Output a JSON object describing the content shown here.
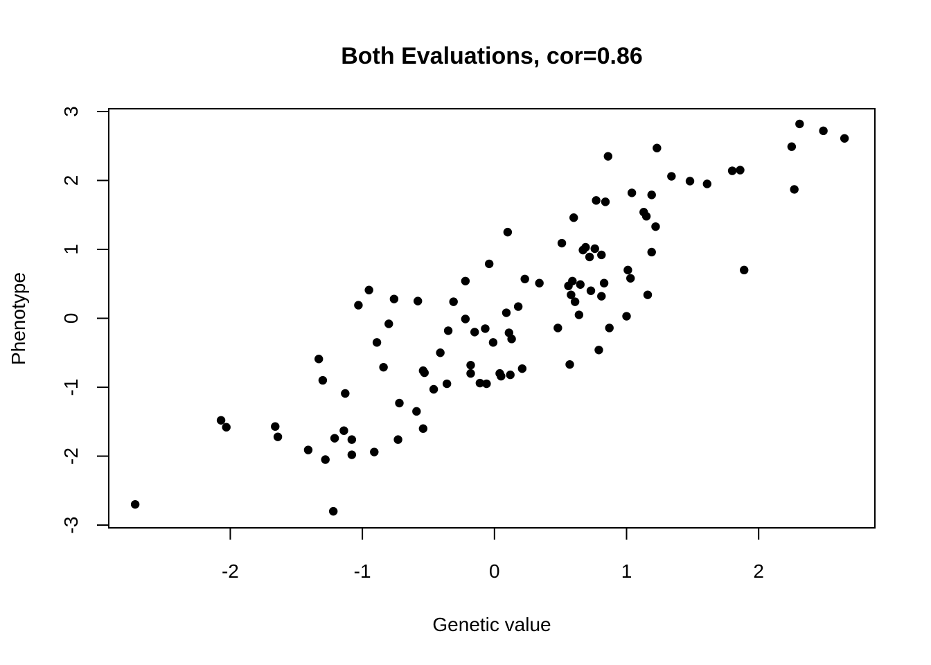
{
  "chart_data": {
    "type": "scatter",
    "title": "Both Evaluations, cor=0.86",
    "xlabel": "Genetic value",
    "ylabel": "Phenotype",
    "xlim": [
      -2.92,
      2.88
    ],
    "ylim": [
      -3.04,
      3.04
    ],
    "x_ticks": [
      -2,
      -1,
      0,
      1,
      2
    ],
    "y_ticks": [
      -3,
      -2,
      -1,
      0,
      1,
      2,
      3
    ],
    "x_tick_labels": [
      "-2",
      "-1",
      "0",
      "1",
      "2"
    ],
    "y_tick_labels": [
      "-3",
      "-2",
      "-1",
      "0",
      "1",
      "2",
      "3"
    ],
    "grid": false,
    "legend": "none",
    "point_color": "#000000",
    "points": [
      {
        "x": -2.72,
        "y": -2.7
      },
      {
        "x": -2.07,
        "y": -1.48
      },
      {
        "x": -2.03,
        "y": -1.58
      },
      {
        "x": -1.66,
        "y": -1.57
      },
      {
        "x": -1.64,
        "y": -1.72
      },
      {
        "x": -1.41,
        "y": -1.91
      },
      {
        "x": -1.33,
        "y": -0.59
      },
      {
        "x": -1.3,
        "y": -0.9
      },
      {
        "x": -1.28,
        "y": -2.05
      },
      {
        "x": -1.22,
        "y": -2.8
      },
      {
        "x": -1.21,
        "y": -1.74
      },
      {
        "x": -1.14,
        "y": -1.63
      },
      {
        "x": -1.13,
        "y": -1.09
      },
      {
        "x": -1.08,
        "y": -1.76
      },
      {
        "x": -1.08,
        "y": -1.98
      },
      {
        "x": -1.03,
        "y": 0.19
      },
      {
        "x": -0.95,
        "y": 0.41
      },
      {
        "x": -0.91,
        "y": -1.94
      },
      {
        "x": -0.89,
        "y": -0.35
      },
      {
        "x": -0.84,
        "y": -0.71
      },
      {
        "x": -0.8,
        "y": -0.08
      },
      {
        "x": -0.76,
        "y": 0.28
      },
      {
        "x": -0.72,
        "y": -1.23
      },
      {
        "x": -0.73,
        "y": -1.76
      },
      {
        "x": -0.59,
        "y": -1.35
      },
      {
        "x": -0.58,
        "y": 0.25
      },
      {
        "x": -0.54,
        "y": -1.6
      },
      {
        "x": -0.54,
        "y": -0.76
      },
      {
        "x": -0.53,
        "y": -0.79
      },
      {
        "x": -0.46,
        "y": -1.03
      },
      {
        "x": -0.41,
        "y": -0.5
      },
      {
        "x": -0.36,
        "y": -0.95
      },
      {
        "x": -0.35,
        "y": -0.18
      },
      {
        "x": -0.31,
        "y": 0.24
      },
      {
        "x": -0.22,
        "y": 0.54
      },
      {
        "x": -0.22,
        "y": -0.01
      },
      {
        "x": -0.18,
        "y": -0.68
      },
      {
        "x": -0.18,
        "y": -0.8
      },
      {
        "x": -0.15,
        "y": -0.2
      },
      {
        "x": -0.11,
        "y": -0.94
      },
      {
        "x": -0.07,
        "y": -0.15
      },
      {
        "x": -0.06,
        "y": -0.95
      },
      {
        "x": -0.04,
        "y": 0.79
      },
      {
        "x": -0.01,
        "y": -0.35
      },
      {
        "x": 0.04,
        "y": -0.8
      },
      {
        "x": 0.05,
        "y": -0.84
      },
      {
        "x": 0.09,
        "y": 0.08
      },
      {
        "x": 0.1,
        "y": 1.25
      },
      {
        "x": 0.11,
        "y": -0.21
      },
      {
        "x": 0.12,
        "y": -0.82
      },
      {
        "x": 0.13,
        "y": -0.3
      },
      {
        "x": 0.18,
        "y": 0.17
      },
      {
        "x": 0.21,
        "y": -0.73
      },
      {
        "x": 0.23,
        "y": 0.57
      },
      {
        "x": 0.34,
        "y": 0.51
      },
      {
        "x": 0.48,
        "y": -0.14
      },
      {
        "x": 0.51,
        "y": 1.09
      },
      {
        "x": 0.56,
        "y": 0.47
      },
      {
        "x": 0.57,
        "y": -0.67
      },
      {
        "x": 0.58,
        "y": 0.34
      },
      {
        "x": 0.59,
        "y": 0.54
      },
      {
        "x": 0.6,
        "y": 1.46
      },
      {
        "x": 0.61,
        "y": 0.24
      },
      {
        "x": 0.64,
        "y": 0.05
      },
      {
        "x": 0.65,
        "y": 0.49
      },
      {
        "x": 0.67,
        "y": 0.99
      },
      {
        "x": 0.69,
        "y": 1.03
      },
      {
        "x": 0.72,
        "y": 0.89
      },
      {
        "x": 0.73,
        "y": 0.4
      },
      {
        "x": 0.76,
        "y": 1.01
      },
      {
        "x": 0.77,
        "y": 1.71
      },
      {
        "x": 0.79,
        "y": -0.46
      },
      {
        "x": 0.81,
        "y": 0.32
      },
      {
        "x": 0.81,
        "y": 0.92
      },
      {
        "x": 0.83,
        "y": 0.51
      },
      {
        "x": 0.84,
        "y": 1.69
      },
      {
        "x": 0.86,
        "y": 2.35
      },
      {
        "x": 0.87,
        "y": -0.14
      },
      {
        "x": 1.0,
        "y": 0.03
      },
      {
        "x": 1.01,
        "y": 0.7
      },
      {
        "x": 1.03,
        "y": 0.58
      },
      {
        "x": 1.04,
        "y": 1.82
      },
      {
        "x": 1.13,
        "y": 1.54
      },
      {
        "x": 1.15,
        "y": 1.48
      },
      {
        "x": 1.16,
        "y": 0.34
      },
      {
        "x": 1.19,
        "y": 0.96
      },
      {
        "x": 1.19,
        "y": 1.79
      },
      {
        "x": 1.22,
        "y": 1.33
      },
      {
        "x": 1.23,
        "y": 2.47
      },
      {
        "x": 1.34,
        "y": 2.06
      },
      {
        "x": 1.48,
        "y": 1.99
      },
      {
        "x": 1.61,
        "y": 1.95
      },
      {
        "x": 1.8,
        "y": 2.14
      },
      {
        "x": 1.86,
        "y": 2.15
      },
      {
        "x": 1.89,
        "y": 0.7
      },
      {
        "x": 2.25,
        "y": 2.49
      },
      {
        "x": 2.27,
        "y": 1.87
      },
      {
        "x": 2.31,
        "y": 2.82
      },
      {
        "x": 2.49,
        "y": 2.72
      },
      {
        "x": 2.65,
        "y": 2.61
      }
    ]
  }
}
